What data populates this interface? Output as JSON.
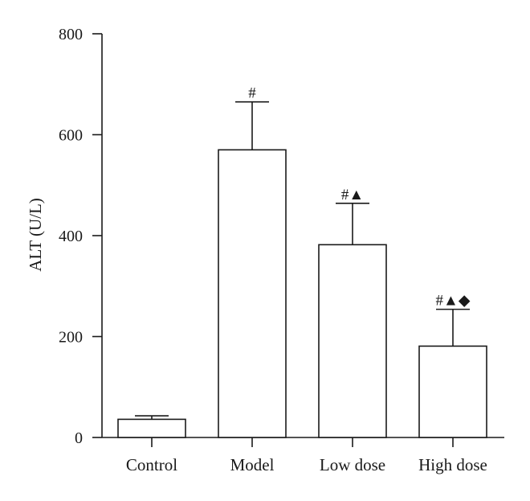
{
  "chart_data": {
    "type": "bar",
    "categories": [
      "Control",
      "Model",
      "Low dose",
      "High dose"
    ],
    "values": [
      36,
      570,
      382,
      181
    ],
    "errors": [
      7,
      95,
      82,
      73
    ],
    "annotations": [
      "",
      "#",
      "#▲",
      "#▲◆"
    ],
    "title": "",
    "xlabel": "",
    "ylabel": "ALT (U/L)",
    "ylim": [
      0,
      800
    ],
    "yticks": [
      0,
      200,
      400,
      600,
      800
    ],
    "grid": false,
    "legend": "none",
    "colors": {
      "bar_fill": "#ffffff",
      "stroke": "#1a1a1a"
    }
  }
}
